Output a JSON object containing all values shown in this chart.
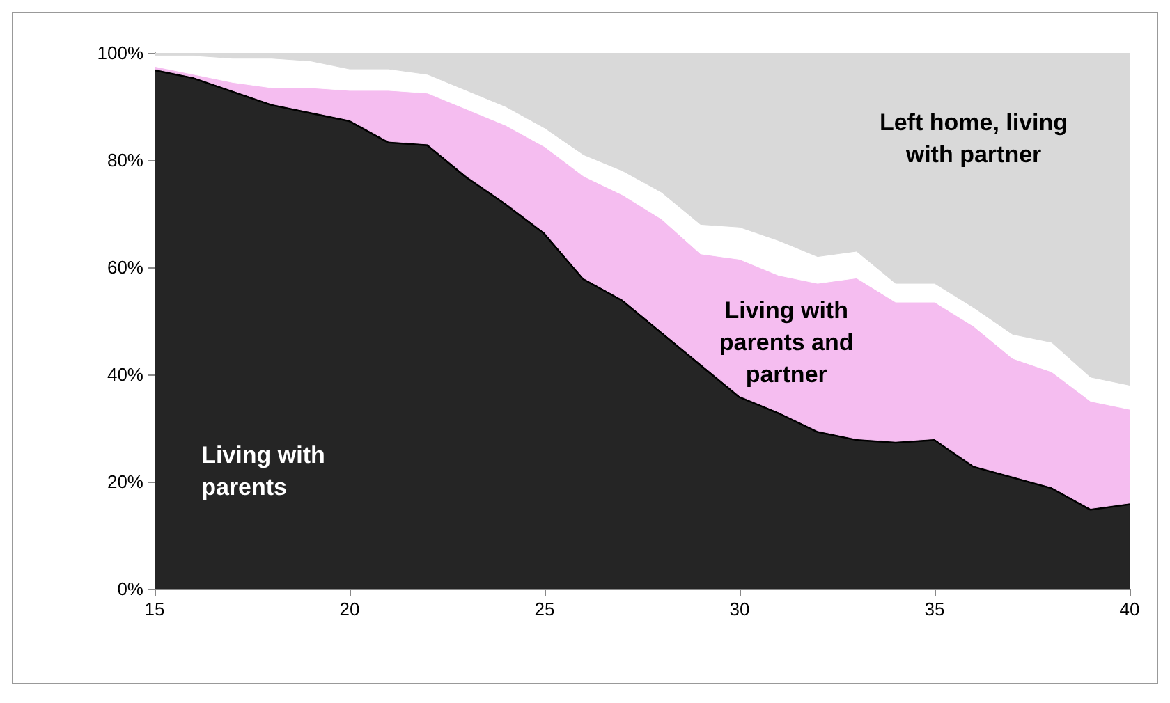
{
  "chart_data": {
    "type": "area",
    "stacked": true,
    "x": [
      15,
      16,
      17,
      18,
      19,
      20,
      21,
      22,
      23,
      24,
      25,
      26,
      27,
      28,
      29,
      30,
      31,
      32,
      33,
      34,
      35,
      36,
      37,
      38,
      39,
      40
    ],
    "series": [
      {
        "name": "Living with parents",
        "color": "#252525",
        "values": [
          97,
          95.5,
          93,
          90.5,
          89,
          87.5,
          83.5,
          83,
          77,
          72,
          66.5,
          58,
          54,
          48,
          42,
          36,
          33,
          29.5,
          28,
          27.5,
          28,
          23,
          21,
          19,
          15,
          16
        ]
      },
      {
        "name": "Living with parents and partner",
        "color": "#f5bdf0",
        "values": [
          0.5,
          0.5,
          1.5,
          3,
          4.5,
          5.5,
          9.5,
          9.5,
          12.5,
          14.5,
          16,
          19,
          19.5,
          21,
          20.5,
          25.5,
          25.5,
          27.5,
          30,
          26,
          25.5,
          26,
          22,
          21.5,
          20,
          17.5
        ]
      },
      {
        "color": "#ffffff",
        "values": [
          2,
          3.5,
          4.5,
          5.5,
          5,
          4,
          4,
          3.5,
          3.5,
          3.5,
          3.5,
          4,
          4.5,
          5,
          5.5,
          6,
          6.5,
          5,
          5,
          3.5,
          3.5,
          3.5,
          4.5,
          5.5,
          4.5,
          4.5
        ]
      },
      {
        "name": "Left home, living with partner",
        "color": "#d9d9d9",
        "values": [
          0.5,
          0.5,
          1,
          1,
          1.5,
          3,
          3,
          4,
          7,
          10,
          14,
          19,
          22,
          26,
          32,
          32.5,
          35,
          38,
          37,
          43,
          43,
          47.5,
          52.5,
          54,
          60.5,
          62
        ]
      }
    ],
    "xlim": [
      15,
      40
    ],
    "xticks": [
      15,
      20,
      25,
      30,
      35,
      40
    ],
    "ylim": [
      0,
      100
    ],
    "yticks": [
      {
        "value": 0,
        "label": "0%"
      },
      {
        "value": 20,
        "label": "20%"
      },
      {
        "value": 40,
        "label": "40%"
      },
      {
        "value": 60,
        "label": "60%"
      },
      {
        "value": 80,
        "label": "80%"
      },
      {
        "value": 100,
        "label": "100%"
      }
    ],
    "grid": false
  }
}
